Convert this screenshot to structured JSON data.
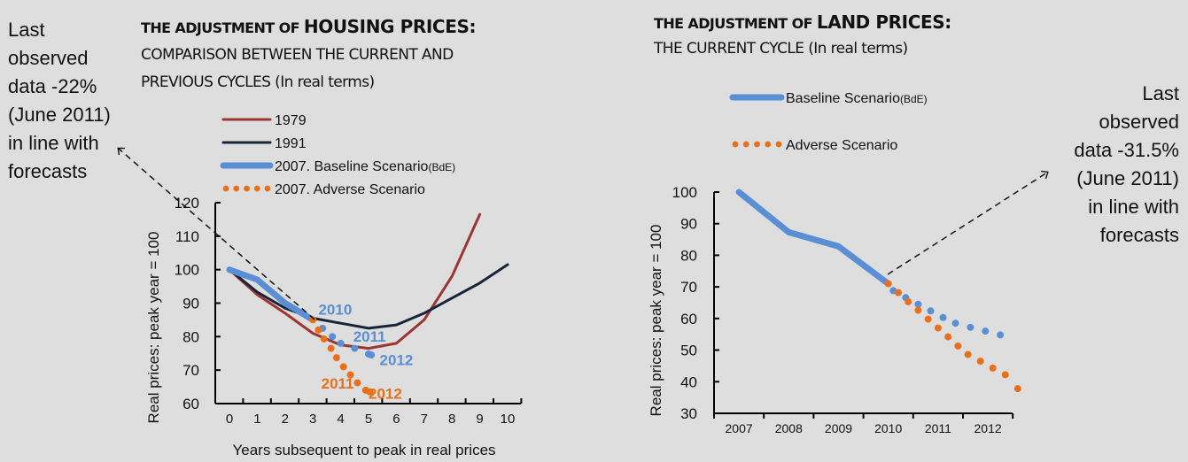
{
  "colors": {
    "background": "#dedede",
    "series_1979": "#9b3633",
    "series_1991": "#17253a",
    "baseline": "#5a8fd6",
    "adverse": "#e8701a",
    "axis": "#000000"
  },
  "annotations": {
    "left": "Last\nobserved\ndata -22%\n(June 2011)\nin line with\nforecasts",
    "right": "Last\nobserved\ndata -31.5%\n(June 2011)\nin line with\nforecasts"
  },
  "chart_data": [
    {
      "type": "line",
      "title_prefix": "THE ADJUSTMENT OF ",
      "title_emphasis": "HOUSING PRICES:",
      "subtitle": "COMPARISON BETWEEN THE CURRENT AND\nPREVIOUS CYCLES (In real terms)",
      "xlabel": "Years subsequent to peak in real prices",
      "ylabel": "Real prices: peak  year = 100",
      "x_ticks": [
        "0",
        "1",
        "2",
        "3",
        "4",
        "5",
        "6",
        "7",
        "8",
        "9",
        "10"
      ],
      "y_ticks": [
        60,
        70,
        80,
        90,
        100,
        110,
        120
      ],
      "ylim": [
        60,
        120
      ],
      "xlim": [
        0,
        10
      ],
      "grid": false,
      "legend_position": "top-left",
      "legend": [
        {
          "label": "1979",
          "suffix": ""
        },
        {
          "label": "1991",
          "suffix": ""
        },
        {
          "label": "2007. Baseline Scenario",
          "suffix": "(BdE)"
        },
        {
          "label": "2007. Adverse Scenario",
          "suffix": ""
        }
      ],
      "series": [
        {
          "name": "1979",
          "style": "solid",
          "x": [
            0,
            1,
            2,
            3,
            4,
            5,
            6,
            7,
            8,
            9
          ],
          "values": [
            100,
            92.5,
            87,
            81,
            77.5,
            76.5,
            78,
            85,
            98,
            116.5
          ]
        },
        {
          "name": "1991",
          "style": "solid",
          "x": [
            0,
            1,
            2,
            3,
            4,
            5,
            6,
            7,
            8,
            9,
            10
          ],
          "values": [
            100,
            93.3,
            88.5,
            85.5,
            84,
            82.5,
            83.5,
            87,
            91.5,
            96,
            101.5
          ]
        },
        {
          "name": "2007. Baseline Scenario (BdE)",
          "style": "thick",
          "x": [
            0,
            1,
            2,
            3
          ],
          "values": [
            100,
            97,
            90,
            85
          ]
        },
        {
          "name": "2007. Baseline Scenario (BdE) forecast",
          "style": "dotted-blue",
          "x": [
            3.35,
            3.7,
            4.0,
            4.5,
            5.0,
            5.1
          ],
          "values": [
            82.5,
            80,
            78,
            76.5,
            74.8,
            74.5
          ]
        },
        {
          "name": "2007. Adverse Scenario",
          "style": "dotted-orange",
          "x": [
            3.0,
            3.2,
            3.4,
            3.65,
            3.85,
            4.1,
            4.35,
            4.6,
            4.9,
            5.05
          ],
          "values": [
            85,
            82,
            79.3,
            76.5,
            73.7,
            71,
            68.6,
            66.2,
            64,
            63.5
          ]
        }
      ],
      "data_labels": [
        {
          "text": "2010",
          "series": "baseline",
          "x": 3.2,
          "y": 86.5
        },
        {
          "text": "2011",
          "series": "baseline",
          "x": 4.45,
          "y": 78.5
        },
        {
          "text": "2012",
          "series": "baseline",
          "x": 5.4,
          "y": 71.5
        },
        {
          "text": "2011",
          "series": "adverse",
          "x": 3.3,
          "y": 64.5
        },
        {
          "text": "2012",
          "series": "adverse",
          "x": 5.0,
          "y": 61.5
        }
      ]
    },
    {
      "type": "line",
      "title_prefix": "THE ADJUSTMENT OF ",
      "title_emphasis": "LAND PRICES:",
      "subtitle": "THE CURRENT CYCLE (In real terms)",
      "xlabel": "",
      "ylabel": "Real prices: peak  year = 100",
      "categories": [
        "2007",
        "2008",
        "2009",
        "2010",
        "2011",
        "2012"
      ],
      "y_ticks": [
        30,
        40,
        50,
        60,
        70,
        80,
        90,
        100
      ],
      "ylim": [
        30,
        100
      ],
      "grid": false,
      "legend_position": "top-center",
      "legend": [
        {
          "label": "Baseline Scenario",
          "suffix": "(BdE)"
        },
        {
          "label": "Adverse Scenario",
          "suffix": ""
        }
      ],
      "series": [
        {
          "name": "Baseline Scenario (BdE)",
          "style": "thick",
          "x": [
            0,
            1,
            2,
            3
          ],
          "values": [
            100,
            87.3,
            82.8,
            71
          ]
        },
        {
          "name": "Baseline Scenario (BdE) forecast",
          "style": "dotted-blue",
          "x": [
            3.1,
            3.35,
            3.6,
            3.85,
            4.1,
            4.35,
            4.65,
            4.95,
            5.25
          ],
          "values": [
            68.8,
            66.6,
            64.5,
            62.4,
            60.3,
            58.5,
            57.2,
            56,
            54.8
          ]
        },
        {
          "name": "Adverse Scenario",
          "style": "dotted-orange",
          "x": [
            3.0,
            3.2,
            3.4,
            3.6,
            3.8,
            4.0,
            4.2,
            4.4,
            4.6,
            4.85,
            5.1,
            5.35,
            5.6
          ],
          "values": [
            71,
            68.2,
            65.3,
            62.6,
            59.8,
            57,
            54.2,
            51.3,
            48.6,
            46.5,
            44.3,
            42.2,
            37.8
          ]
        }
      ]
    }
  ]
}
